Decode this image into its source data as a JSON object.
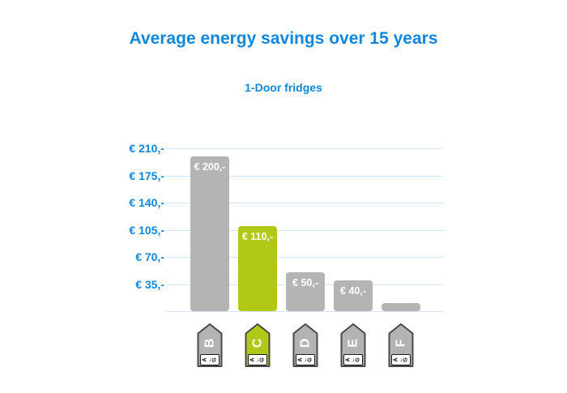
{
  "chart_data": {
    "type": "bar",
    "title": "Average energy savings over 15 years",
    "subtitle": "1-Door fridges",
    "categories": [
      "B",
      "C",
      "D",
      "E",
      "F"
    ],
    "values": [
      200,
      110,
      50,
      40,
      10
    ],
    "bar_value_labels": [
      "€ 200,-",
      "€ 110,-",
      "€ 50,-",
      "€ 40,-",
      ""
    ],
    "ylim": [
      0,
      210
    ],
    "ytick_values": [
      210,
      175,
      140,
      105,
      70,
      35
    ],
    "ytick_labels": [
      "€ 210,-",
      "€ 175,-",
      "€ 140,-",
      "€ 105,-",
      "€ 70,-",
      "€ 35,-"
    ],
    "grid": true,
    "legend": "none",
    "highlight_index": 1,
    "energy_scale_text": "A←G",
    "colors": {
      "title_blue": "#0e87dc",
      "gridline": "#cfe8f9",
      "bar_gray": "#b4b4b4",
      "bar_green": "#b1c916",
      "bar_label_text": "#ffffff",
      "tag_border": "#4a4a4a",
      "tag_gray": "#b3b3b3",
      "tag_letter": "#ffffff",
      "scale_text_color": "#111111"
    }
  }
}
